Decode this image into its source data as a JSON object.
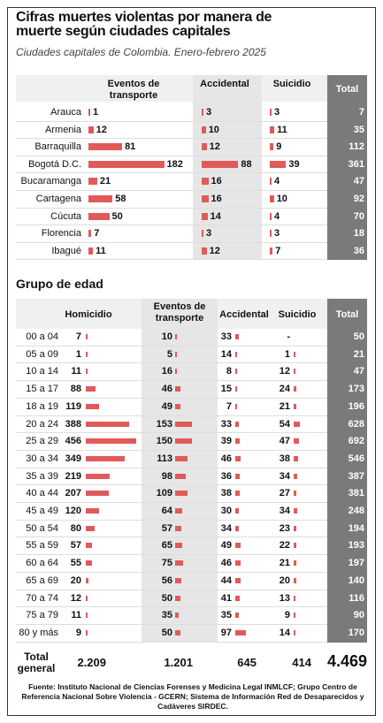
{
  "header": {
    "title": "Cifras muertes violentas por manera de muerte según ciudades capitales",
    "subtitle": "Ciudades capitales de Colombia. Enero-febrero 2025"
  },
  "cities": {
    "columns": [
      "Eventos de transporte",
      "Accidental",
      "Suicidio",
      "Total"
    ],
    "rows": [
      {
        "label": "Arauca",
        "values": [
          1,
          3,
          3,
          7
        ]
      },
      {
        "label": "Armenia",
        "values": [
          12,
          10,
          11,
          35
        ]
      },
      {
        "label": "Barraquilla",
        "values": [
          81,
          12,
          9,
          112
        ]
      },
      {
        "label": "Bogotá D.C.",
        "values": [
          182,
          88,
          39,
          361
        ]
      },
      {
        "label": "Bucaramanga",
        "values": [
          21,
          16,
          4,
          47
        ]
      },
      {
        "label": "Cartagena",
        "values": [
          58,
          16,
          10,
          92
        ]
      },
      {
        "label": "Cúcuta",
        "values": [
          50,
          14,
          4,
          70
        ]
      },
      {
        "label": "Florencia",
        "values": [
          7,
          3,
          3,
          18
        ]
      },
      {
        "label": "Ibagué",
        "values": [
          11,
          12,
          7,
          36
        ]
      }
    ]
  },
  "age": {
    "title": "Grupo de edad",
    "columns": [
      "Homicidio",
      "Eventos de transporte",
      "Accidental",
      "Suicidio",
      "Total"
    ],
    "rows": [
      {
        "label": "00 a 04",
        "values": [
          7,
          10,
          33,
          "-",
          50
        ]
      },
      {
        "label": "05 a 09",
        "values": [
          1,
          5,
          14,
          1,
          21
        ]
      },
      {
        "label": "10 a 14",
        "values": [
          11,
          16,
          8,
          12,
          47
        ]
      },
      {
        "label": "15 a 17",
        "values": [
          88,
          46,
          15,
          24,
          173
        ]
      },
      {
        "label": "18 a 19",
        "values": [
          119,
          49,
          7,
          21,
          196
        ]
      },
      {
        "label": "20 a 24",
        "values": [
          388,
          153,
          33,
          54,
          628
        ]
      },
      {
        "label": "25 a 29",
        "values": [
          456,
          150,
          39,
          47,
          692
        ]
      },
      {
        "label": "30 a 34",
        "values": [
          349,
          113,
          46,
          38,
          546
        ]
      },
      {
        "label": "35 a 39",
        "values": [
          219,
          98,
          36,
          34,
          387
        ]
      },
      {
        "label": "40 a 44",
        "values": [
          207,
          109,
          38,
          27,
          381
        ]
      },
      {
        "label": "45 a 49",
        "values": [
          120,
          64,
          30,
          34,
          248
        ]
      },
      {
        "label": "50 a 54",
        "values": [
          80,
          57,
          34,
          23,
          194
        ]
      },
      {
        "label": "55 a 59",
        "values": [
          57,
          65,
          49,
          22,
          193
        ]
      },
      {
        "label": "60 a 64",
        "values": [
          55,
          75,
          46,
          21,
          197
        ]
      },
      {
        "label": "65 a 69",
        "values": [
          20,
          56,
          44,
          20,
          140
        ]
      },
      {
        "label": "70 a 74",
        "values": [
          12,
          50,
          41,
          13,
          116
        ]
      },
      {
        "label": "75 a 79",
        "values": [
          11,
          35,
          35,
          9,
          90
        ]
      },
      {
        "label": "80 y más",
        "values": [
          9,
          50,
          97,
          14,
          170
        ]
      }
    ],
    "total": {
      "label": "Total general",
      "values": [
        "2.209",
        "1.201",
        645,
        414,
        "4.469"
      ]
    }
  },
  "source": "Fuente: Instituto Nacional de Ciencias Forenses y Medicina Legal INMLCF; Grupo Centro de Referencia Nacional Sobre Violencia - GCERN; Sistema de Información Red de Desaparecidos y Cadáveres SIRDEC."
}
